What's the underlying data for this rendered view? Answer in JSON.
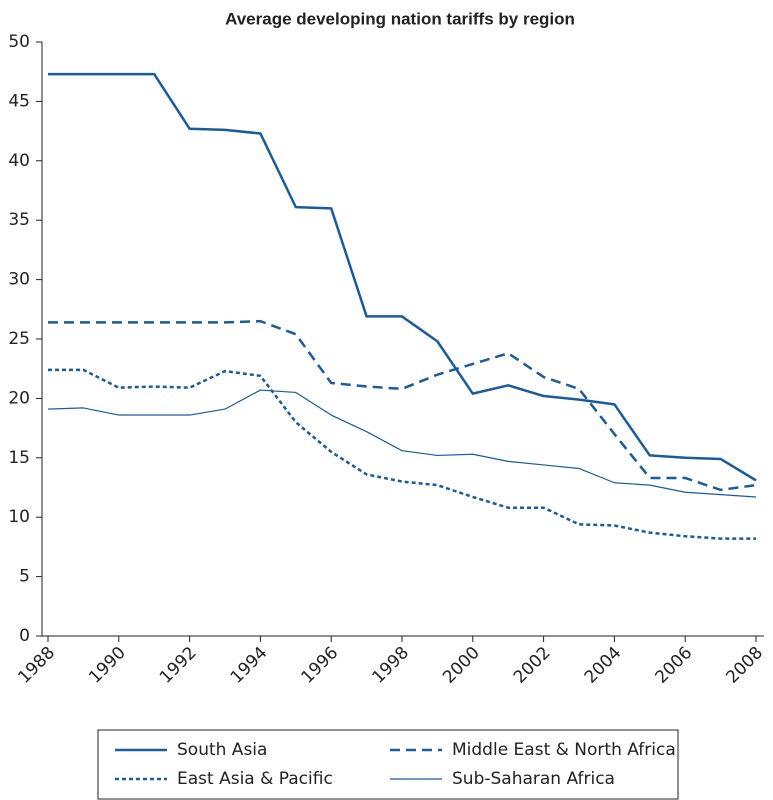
{
  "chart_data": {
    "type": "line",
    "title": "Average developing nation tariffs by region",
    "x": [
      1988,
      1989,
      1990,
      1991,
      1992,
      1993,
      1994,
      1995,
      1996,
      1997,
      1998,
      1999,
      2000,
      2001,
      2002,
      2003,
      2004,
      2005,
      2006,
      2007,
      2008
    ],
    "series": [
      {
        "name": "South Asia",
        "color": "#1a5b9c",
        "style": "solid",
        "width": 2.5,
        "values": [
          47.3,
          47.3,
          47.3,
          47.3,
          42.7,
          42.6,
          42.3,
          36.1,
          36.0,
          26.9,
          26.9,
          24.8,
          20.4,
          21.1,
          20.2,
          19.9,
          19.5,
          15.2,
          15.0,
          14.9,
          13.1
        ]
      },
      {
        "name": "Middle East & North Africa",
        "color": "#1a5b9c",
        "style": "dashed",
        "width": 2.5,
        "values": [
          26.4,
          26.4,
          26.4,
          26.4,
          26.4,
          26.4,
          26.5,
          25.4,
          21.3,
          21.0,
          20.8,
          22.0,
          22.9,
          23.8,
          21.8,
          20.8,
          17.0,
          13.3,
          13.3,
          12.3,
          12.7
        ]
      },
      {
        "name": "East Asia & Pacific",
        "color": "#1a5b9c",
        "style": "dotted",
        "width": 2.5,
        "values": [
          22.4,
          22.4,
          20.9,
          21.0,
          20.9,
          22.3,
          21.9,
          18.0,
          15.5,
          13.6,
          13.0,
          12.7,
          11.7,
          10.8,
          10.8,
          9.4,
          9.3,
          8.7,
          8.4,
          8.2,
          8.2
        ]
      },
      {
        "name": "Sub-Saharan Africa",
        "color": "#1a5b9c",
        "style": "solid",
        "width": 1.2,
        "values": [
          19.1,
          19.2,
          18.6,
          18.6,
          18.6,
          19.1,
          20.7,
          20.5,
          18.6,
          17.2,
          15.6,
          15.2,
          15.3,
          14.7,
          14.4,
          14.1,
          12.9,
          12.7,
          12.1,
          11.9,
          11.7
        ]
      }
    ],
    "xlim": [
      1988,
      2008
    ],
    "xticks": [
      1988,
      1990,
      1992,
      1994,
      1996,
      1998,
      2000,
      2002,
      2004,
      2006,
      2008
    ],
    "ylim": [
      0,
      50
    ],
    "yticks": [
      0,
      5,
      10,
      15,
      20,
      25,
      30,
      35,
      40,
      45,
      50
    ]
  }
}
